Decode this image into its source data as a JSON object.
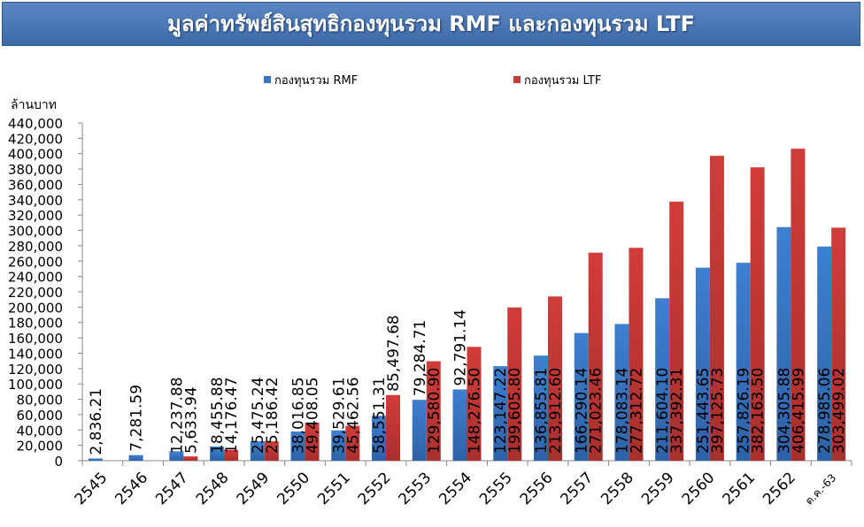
{
  "title": "มูลค่าทรัพย์สินสุทธิกองทุนรวม RMF และกองทุนรวม LTF",
  "chart_data": {
    "type": "bar",
    "title": "มูลค่าทรัพย์สินสุทธิกองทุนรวม RMF และกองทุนรวม LTF",
    "ylabel": "ล้านบาท",
    "xlabel": "",
    "ylim": [
      0,
      440000
    ],
    "yticks": [
      "0",
      "20,000",
      "40,000",
      "60,000",
      "80,000",
      "100,000",
      "120,000",
      "140,000",
      "160,000",
      "180,000",
      "200,000",
      "220,000",
      "240,000",
      "260,000",
      "280,000",
      "300,000",
      "320,000",
      "340,000",
      "360,000",
      "380,000",
      "400,000",
      "420,000",
      "440,000"
    ],
    "legend_position": "top",
    "categories": [
      "2545",
      "2546",
      "2547",
      "2548",
      "2549",
      "2550",
      "2551",
      "2552",
      "2553",
      "2554",
      "2555",
      "2556",
      "2557",
      "2558",
      "2559",
      "2560",
      "2561",
      "2562",
      "ต.ค.-63"
    ],
    "series": [
      {
        "name": "กองทุนรวม RMF",
        "color": "#3a75c4",
        "values": [
          2836.21,
          7281.59,
          12237.88,
          18455.88,
          25475.24,
          38016.85,
          39529.61,
          58551.31,
          79284.71,
          92791.14,
          123147.22,
          136855.81,
          166290.14,
          178083.14,
          211604.1,
          251443.65,
          257826.19,
          304305.88,
          278985.06
        ],
        "labels": [
          "2,836.21",
          "7,281.59",
          "12,237.88",
          "18,455.88",
          "25,475.24",
          "38,016.85",
          "39,529.61",
          "58,551.31",
          "79,284.71",
          "92,791.14",
          "123,147.22",
          "136,855.81",
          "166,290.14",
          "178,083.14",
          "211,604.10",
          "251,443.65",
          "257,826.19",
          "304,305.88",
          "278,985.06"
        ]
      },
      {
        "name": "กองทุนรวม LTF",
        "color": "#c83a37",
        "values": [
          null,
          null,
          5633.94,
          14176.47,
          25186.42,
          49408.05,
          45462.56,
          85497.68,
          129580.9,
          148276.5,
          199605.8,
          213912.6,
          271023.46,
          277312.72,
          337392.31,
          397125.73,
          382163.5,
          406415.99,
          303499.02
        ],
        "labels": [
          null,
          null,
          "5,633.94",
          "14,176.47",
          "25,186.42",
          "49,408.05",
          "45,462.56",
          "85,497.68",
          "129,580.90",
          "148,276.50",
          "199,605.80",
          "213,912.60",
          "271,023.46",
          "277,312.72",
          "337,392.31",
          "397,125.73",
          "382,163.50",
          "406,415.99",
          "303,499.02"
        ]
      }
    ]
  }
}
